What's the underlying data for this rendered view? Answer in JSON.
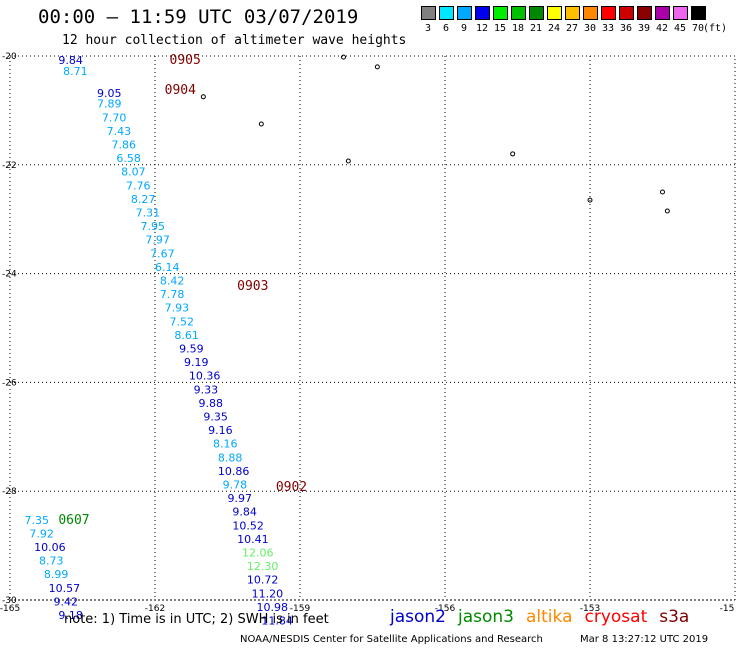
{
  "header": {
    "title": "00:00 – 11:59 UTC 03/07/2019",
    "subtitle": "12 hour collection of altimeter wave heights"
  },
  "legend": {
    "unit": "(ft)",
    "items": [
      {
        "label": "3",
        "color": "#808080"
      },
      {
        "label": "6",
        "color": "#00e8ff"
      },
      {
        "label": "9",
        "color": "#00a8ff"
      },
      {
        "label": "12",
        "color": "#0000ee"
      },
      {
        "label": "15",
        "color": "#00ee00"
      },
      {
        "label": "18",
        "color": "#00c000"
      },
      {
        "label": "21",
        "color": "#008800"
      },
      {
        "label": "24",
        "color": "#ffff00"
      },
      {
        "label": "27",
        "color": "#ffc000"
      },
      {
        "label": "30",
        "color": "#ff8800"
      },
      {
        "label": "33",
        "color": "#ff0000"
      },
      {
        "label": "36",
        "color": "#cc0000"
      },
      {
        "label": "39",
        "color": "#880000"
      },
      {
        "label": "42",
        "color": "#aa00aa"
      },
      {
        "label": "45",
        "color": "#ee66ee"
      },
      {
        "label": "70",
        "color": "#000000"
      }
    ]
  },
  "axes": {
    "lon_labels": [
      "-165",
      "-162",
      "-159",
      "-156",
      "-153",
      "-15"
    ],
    "lat_labels": [
      "-20",
      "-22",
      "-24",
      "-26",
      "-28",
      "-30"
    ]
  },
  "time_tags": [
    {
      "text": "0905",
      "color": "#800000",
      "lon": -161.7,
      "lat": -20.15
    },
    {
      "text": "0904",
      "color": "#800000",
      "lon": -161.8,
      "lat": -20.7
    },
    {
      "text": "0903",
      "color": "#800000",
      "lon": -160.3,
      "lat": -24.3
    },
    {
      "text": "0902",
      "color": "#800000",
      "lon": -159.5,
      "lat": -28.0
    },
    {
      "text": "0607",
      "color": "#008800",
      "lon": -164.0,
      "lat": -28.6
    }
  ],
  "observations": [
    {
      "v": "9.84",
      "c": "#0000cc",
      "lon": -164.0,
      "lat": -20.15
    },
    {
      "v": "8.71",
      "c": "#00a8ff",
      "lon": -163.9,
      "lat": -20.35
    },
    {
      "v": "9.05",
      "c": "#0000cc",
      "lon": -163.2,
      "lat": -20.75
    },
    {
      "v": "7.89",
      "c": "#00a8ff",
      "lon": -163.2,
      "lat": -20.95
    },
    {
      "v": "7.70",
      "c": "#00a8ff",
      "lon": -163.1,
      "lat": -21.2
    },
    {
      "v": "7.43",
      "c": "#00a8ff",
      "lon": -163.0,
      "lat": -21.45
    },
    {
      "v": "7.86",
      "c": "#00a8ff",
      "lon": -162.9,
      "lat": -21.7
    },
    {
      "v": "6.58",
      "c": "#00a8ff",
      "lon": -162.8,
      "lat": -21.95
    },
    {
      "v": "8.07",
      "c": "#00a8ff",
      "lon": -162.7,
      "lat": -22.2
    },
    {
      "v": "7.76",
      "c": "#00a8ff",
      "lon": -162.6,
      "lat": -22.45
    },
    {
      "v": "8.27",
      "c": "#00a8ff",
      "lon": -162.5,
      "lat": -22.7
    },
    {
      "v": "7.31",
      "c": "#00a8ff",
      "lon": -162.4,
      "lat": -22.95
    },
    {
      "v": "7.95",
      "c": "#00a8ff",
      "lon": -162.3,
      "lat": -23.2
    },
    {
      "v": "7.97",
      "c": "#00a8ff",
      "lon": -162.2,
      "lat": -23.45
    },
    {
      "v": "7.67",
      "c": "#00a8ff",
      "lon": -162.1,
      "lat": -23.7
    },
    {
      "v": "6.14",
      "c": "#00a8ff",
      "lon": -162.0,
      "lat": -23.95
    },
    {
      "v": "8.42",
      "c": "#00a8ff",
      "lon": -161.9,
      "lat": -24.2
    },
    {
      "v": "7.78",
      "c": "#00a8ff",
      "lon": -161.9,
      "lat": -24.45
    },
    {
      "v": "7.93",
      "c": "#00a8ff",
      "lon": -161.8,
      "lat": -24.7
    },
    {
      "v": "7.52",
      "c": "#00a8ff",
      "lon": -161.7,
      "lat": -24.95
    },
    {
      "v": "8.61",
      "c": "#00a8ff",
      "lon": -161.6,
      "lat": -25.2
    },
    {
      "v": "9.59",
      "c": "#0000cc",
      "lon": -161.5,
      "lat": -25.45
    },
    {
      "v": "9.19",
      "c": "#0000cc",
      "lon": -161.4,
      "lat": -25.7
    },
    {
      "v": "10.36",
      "c": "#0000cc",
      "lon": -161.3,
      "lat": -25.95
    },
    {
      "v": "9.33",
      "c": "#0000cc",
      "lon": -161.2,
      "lat": -26.2
    },
    {
      "v": "9.88",
      "c": "#0000cc",
      "lon": -161.1,
      "lat": -26.45
    },
    {
      "v": "9.35",
      "c": "#0000cc",
      "lon": -161.0,
      "lat": -26.7
    },
    {
      "v": "9.16",
      "c": "#0000cc",
      "lon": -160.9,
      "lat": -26.95
    },
    {
      "v": "8.16",
      "c": "#00a8ff",
      "lon": -160.8,
      "lat": -27.2
    },
    {
      "v": "8.88",
      "c": "#00a8ff",
      "lon": -160.7,
      "lat": -27.45
    },
    {
      "v": "10.86",
      "c": "#0000cc",
      "lon": -160.7,
      "lat": -27.7
    },
    {
      "v": "9.78",
      "c": "#00a8ff",
      "lon": -160.6,
      "lat": -27.95
    },
    {
      "v": "9.97",
      "c": "#0000cc",
      "lon": -160.5,
      "lat": -28.2
    },
    {
      "v": "9.84",
      "c": "#0000cc",
      "lon": -160.4,
      "lat": -28.45
    },
    {
      "v": "10.52",
      "c": "#0000cc",
      "lon": -160.4,
      "lat": -28.7
    },
    {
      "v": "10.41",
      "c": "#0000cc",
      "lon": -160.3,
      "lat": -28.95
    },
    {
      "v": "12.06",
      "c": "#66ee66",
      "lon": -160.2,
      "lat": -29.2
    },
    {
      "v": "12.30",
      "c": "#66ee66",
      "lon": -160.1,
      "lat": -29.45
    },
    {
      "v": "10.72",
      "c": "#0000cc",
      "lon": -160.1,
      "lat": -29.7
    },
    {
      "v": "11.20",
      "c": "#0000cc",
      "lon": -160.0,
      "lat": -29.95
    },
    {
      "v": "10.98",
      "c": "#0000cc",
      "lon": -159.9,
      "lat": -30.2
    },
    {
      "v": "11.84",
      "c": "#0000cc",
      "lon": -159.8,
      "lat": -30.45
    },
    {
      "v": "7.35",
      "c": "#00a8ff",
      "lon": -164.7,
      "lat": -28.6
    },
    {
      "v": "7.92",
      "c": "#00a8ff",
      "lon": -164.6,
      "lat": -28.85
    },
    {
      "v": "10.06",
      "c": "#0000cc",
      "lon": -164.5,
      "lat": -29.1
    },
    {
      "v": "8.73",
      "c": "#00a8ff",
      "lon": -164.4,
      "lat": -29.35
    },
    {
      "v": "8.99",
      "c": "#00a8ff",
      "lon": -164.3,
      "lat": -29.6
    },
    {
      "v": "10.57",
      "c": "#0000cc",
      "lon": -164.2,
      "lat": -29.85
    },
    {
      "v": "9.42",
      "c": "#0000cc",
      "lon": -164.1,
      "lat": -30.1
    },
    {
      "v": "9.18",
      "c": "#0000cc",
      "lon": -164.0,
      "lat": -30.35
    }
  ],
  "islands": [
    {
      "lon": -161.0,
      "lat": -20.75
    },
    {
      "lon": -159.8,
      "lat": -21.25
    },
    {
      "lon": -158.0,
      "lat": -21.93
    },
    {
      "lon": -154.6,
      "lat": -21.8
    },
    {
      "lon": -153.0,
      "lat": -22.65
    },
    {
      "lon": -151.5,
      "lat": -22.5
    },
    {
      "lon": -151.4,
      "lat": -22.85
    },
    {
      "lon": -157.4,
      "lat": -20.2
    },
    {
      "lon": -158.1,
      "lat": -20.02
    }
  ],
  "footer": {
    "note": "note:  1) Time is in UTC;  2) SWH is in feet",
    "satellites": [
      {
        "name": "jason2",
        "color": "#0000cc"
      },
      {
        "name": "jason3",
        "color": "#008800"
      },
      {
        "name": "altika",
        "color": "#ff8800"
      },
      {
        "name": "cryosat",
        "color": "#ff0000"
      },
      {
        "name": "s3a",
        "color": "#800000"
      }
    ],
    "credit": "NOAA/NESDIS Center for Satellite Applications and Research",
    "stamp": "Mar  8 13:27:12 UTC 2019"
  }
}
